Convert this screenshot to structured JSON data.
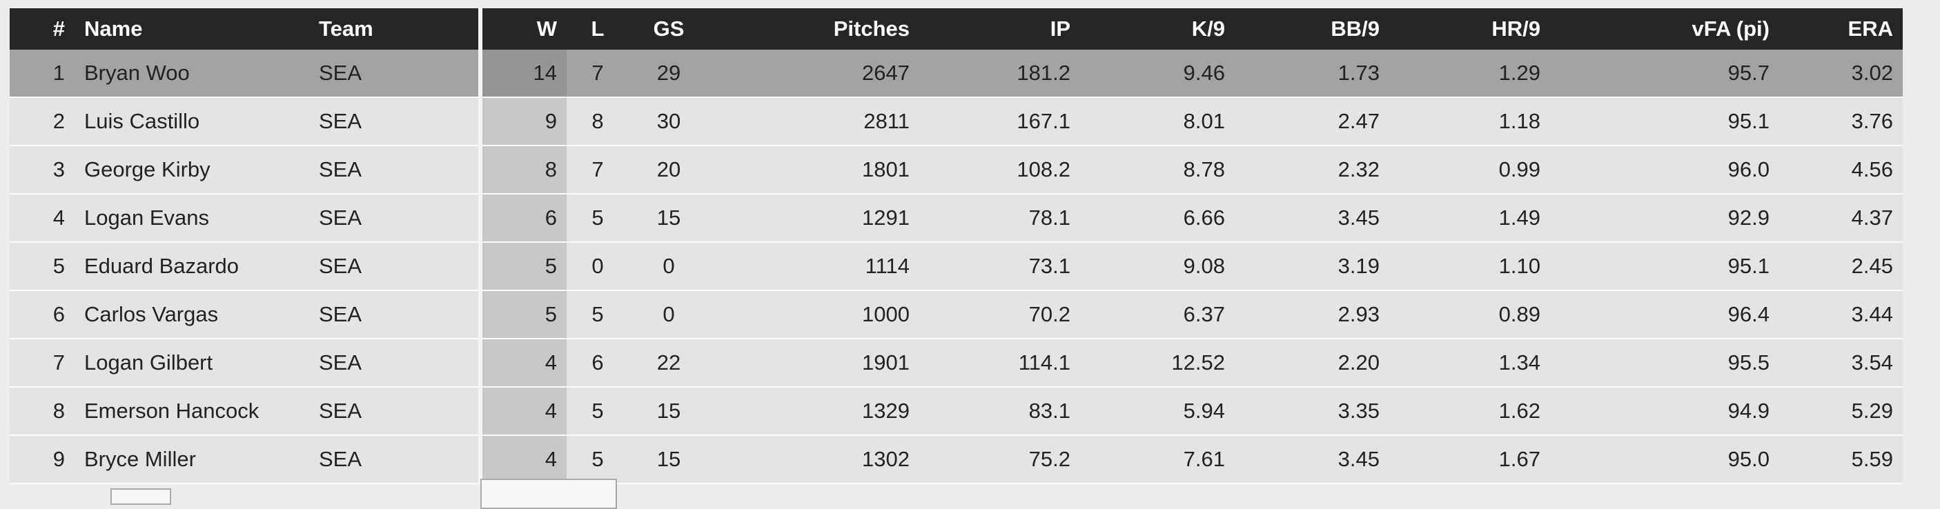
{
  "table": {
    "headers": [
      "#",
      "Name",
      "Team",
      "W",
      "L",
      "GS",
      "Pitches",
      "IP",
      "K/9",
      "BB/9",
      "HR/9",
      "vFA (pi)",
      "ERA"
    ],
    "rows": [
      [
        "1",
        "Bryan Woo",
        "SEA",
        "14",
        "7",
        "29",
        "2647",
        "181.2",
        "9.46",
        "1.73",
        "1.29",
        "95.7",
        "3.02"
      ],
      [
        "2",
        "Luis Castillo",
        "SEA",
        "9",
        "8",
        "30",
        "2811",
        "167.1",
        "8.01",
        "2.47",
        "1.18",
        "95.1",
        "3.76"
      ],
      [
        "3",
        "George Kirby",
        "SEA",
        "8",
        "7",
        "20",
        "1801",
        "108.2",
        "8.78",
        "2.32",
        "0.99",
        "96.0",
        "4.56"
      ],
      [
        "4",
        "Logan Evans",
        "SEA",
        "6",
        "5",
        "15",
        "1291",
        "78.1",
        "6.66",
        "3.45",
        "1.49",
        "92.9",
        "4.37"
      ],
      [
        "5",
        "Eduard Bazardo",
        "SEA",
        "5",
        "0",
        "0",
        "1114",
        "73.1",
        "9.08",
        "3.19",
        "1.10",
        "95.1",
        "2.45"
      ],
      [
        "6",
        "Carlos Vargas",
        "SEA",
        "5",
        "5",
        "0",
        "1000",
        "70.2",
        "6.37",
        "2.93",
        "0.89",
        "96.4",
        "3.44"
      ],
      [
        "7",
        "Logan Gilbert",
        "SEA",
        "4",
        "6",
        "22",
        "1901",
        "114.1",
        "12.52",
        "2.20",
        "1.34",
        "95.5",
        "3.54"
      ],
      [
        "8",
        "Emerson Hancock",
        "SEA",
        "4",
        "5",
        "15",
        "1329",
        "83.1",
        "5.94",
        "3.35",
        "1.62",
        "94.9",
        "5.29"
      ],
      [
        "9",
        "Bryce Miller",
        "SEA",
        "4",
        "5",
        "15",
        "1302",
        "75.2",
        "7.61",
        "3.45",
        "1.67",
        "95.0",
        "5.59"
      ]
    ]
  }
}
